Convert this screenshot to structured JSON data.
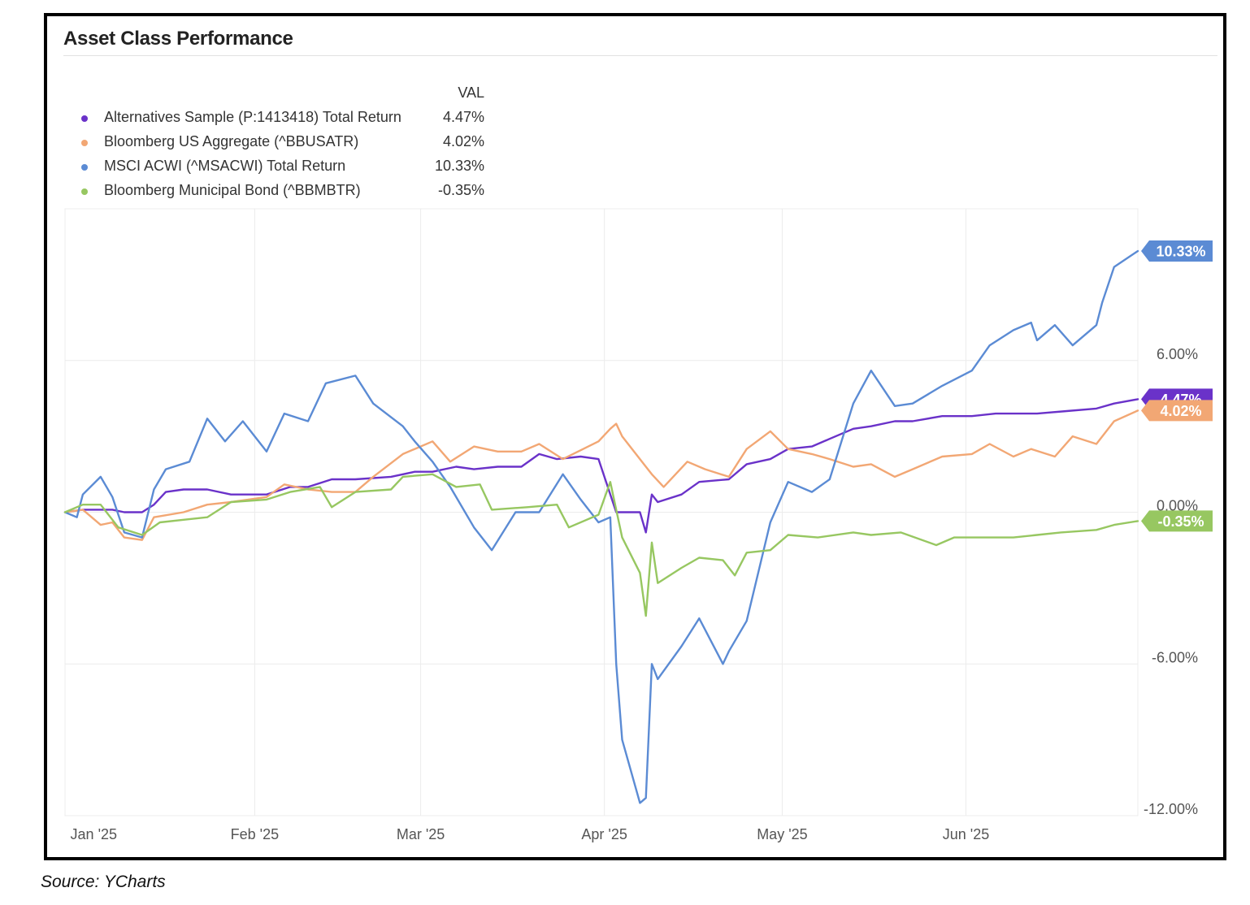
{
  "source_text": "Source: YCharts",
  "chart_data": {
    "type": "line",
    "title": "Asset Class Performance",
    "legend_header": "VAL",
    "xlabel": "",
    "ylabel": "",
    "ylim": [
      -12,
      12
    ],
    "yticks": [
      6,
      0,
      -6,
      -12
    ],
    "ytick_labels": [
      "6.00%",
      "0.00%",
      "-6.00%",
      "-12.00%"
    ],
    "x_tick_labels": [
      "Jan '25",
      "Feb '25",
      "Mar '25",
      "Apr '25",
      "May '25",
      "Jun '25"
    ],
    "x_tick_dates": [
      "2025-01-01",
      "2025-02-01",
      "2025-03-01",
      "2025-04-01",
      "2025-05-01",
      "2025-06-01"
    ],
    "x_range": [
      "2024-12-31",
      "2025-06-30"
    ],
    "grid": true,
    "legend_position": "top-left",
    "series": [
      {
        "name": "Alternatives Sample (P:1413418) Total Return",
        "value_label": "4.47%",
        "color": "#6a32c9",
        "data": [
          [
            "2024-12-31",
            0.0
          ],
          [
            "2025-01-03",
            0.1
          ],
          [
            "2025-01-08",
            0.1
          ],
          [
            "2025-01-10",
            0.0
          ],
          [
            "2025-01-13",
            0.0
          ],
          [
            "2025-01-15",
            0.3
          ],
          [
            "2025-01-17",
            0.8
          ],
          [
            "2025-01-20",
            0.9
          ],
          [
            "2025-01-24",
            0.9
          ],
          [
            "2025-01-28",
            0.7
          ],
          [
            "2025-02-03",
            0.7
          ],
          [
            "2025-02-07",
            1.0
          ],
          [
            "2025-02-10",
            1.0
          ],
          [
            "2025-02-14",
            1.3
          ],
          [
            "2025-02-18",
            1.3
          ],
          [
            "2025-02-24",
            1.4
          ],
          [
            "2025-02-28",
            1.6
          ],
          [
            "2025-03-03",
            1.6
          ],
          [
            "2025-03-07",
            1.8
          ],
          [
            "2025-03-10",
            1.7
          ],
          [
            "2025-03-14",
            1.8
          ],
          [
            "2025-03-18",
            1.8
          ],
          [
            "2025-03-21",
            2.3
          ],
          [
            "2025-03-24",
            2.1
          ],
          [
            "2025-03-28",
            2.2
          ],
          [
            "2025-03-31",
            2.1
          ],
          [
            "2025-04-03",
            0.0
          ],
          [
            "2025-04-07",
            0.0
          ],
          [
            "2025-04-08",
            -0.8
          ],
          [
            "2025-04-09",
            0.7
          ],
          [
            "2025-04-10",
            0.4
          ],
          [
            "2025-04-14",
            0.7
          ],
          [
            "2025-04-17",
            1.2
          ],
          [
            "2025-04-22",
            1.3
          ],
          [
            "2025-04-25",
            1.9
          ],
          [
            "2025-04-29",
            2.1
          ],
          [
            "2025-05-02",
            2.5
          ],
          [
            "2025-05-06",
            2.6
          ],
          [
            "2025-05-09",
            2.9
          ],
          [
            "2025-05-13",
            3.3
          ],
          [
            "2025-05-16",
            3.4
          ],
          [
            "2025-05-20",
            3.6
          ],
          [
            "2025-05-23",
            3.6
          ],
          [
            "2025-05-28",
            3.8
          ],
          [
            "2025-06-02",
            3.8
          ],
          [
            "2025-06-06",
            3.9
          ],
          [
            "2025-06-10",
            3.9
          ],
          [
            "2025-06-13",
            3.9
          ],
          [
            "2025-06-18",
            4.0
          ],
          [
            "2025-06-23",
            4.1
          ],
          [
            "2025-06-26",
            4.3
          ],
          [
            "2025-06-30",
            4.47
          ]
        ]
      },
      {
        "name": "Bloomberg US Aggregate (^BBUSATR)",
        "value_label": "4.02%",
        "color": "#f2a774",
        "data": [
          [
            "2024-12-31",
            0.0
          ],
          [
            "2025-01-03",
            0.1
          ],
          [
            "2025-01-06",
            -0.5
          ],
          [
            "2025-01-08",
            -0.4
          ],
          [
            "2025-01-10",
            -1.0
          ],
          [
            "2025-01-13",
            -1.1
          ],
          [
            "2025-01-15",
            -0.2
          ],
          [
            "2025-01-20",
            0.0
          ],
          [
            "2025-01-24",
            0.3
          ],
          [
            "2025-01-28",
            0.4
          ],
          [
            "2025-02-03",
            0.6
          ],
          [
            "2025-02-06",
            1.1
          ],
          [
            "2025-02-10",
            0.9
          ],
          [
            "2025-02-14",
            0.8
          ],
          [
            "2025-02-18",
            0.8
          ],
          [
            "2025-02-21",
            1.4
          ],
          [
            "2025-02-26",
            2.3
          ],
          [
            "2025-03-03",
            2.8
          ],
          [
            "2025-03-06",
            2.0
          ],
          [
            "2025-03-10",
            2.6
          ],
          [
            "2025-03-14",
            2.4
          ],
          [
            "2025-03-18",
            2.4
          ],
          [
            "2025-03-21",
            2.7
          ],
          [
            "2025-03-25",
            2.1
          ],
          [
            "2025-03-31",
            2.8
          ],
          [
            "2025-04-02",
            3.3
          ],
          [
            "2025-04-03",
            3.5
          ],
          [
            "2025-04-04",
            3.0
          ],
          [
            "2025-04-08",
            1.8
          ],
          [
            "2025-04-09",
            1.5
          ],
          [
            "2025-04-11",
            1.0
          ],
          [
            "2025-04-15",
            2.0
          ],
          [
            "2025-04-18",
            1.7
          ],
          [
            "2025-04-22",
            1.4
          ],
          [
            "2025-04-25",
            2.5
          ],
          [
            "2025-04-29",
            3.2
          ],
          [
            "2025-05-02",
            2.5
          ],
          [
            "2025-05-06",
            2.3
          ],
          [
            "2025-05-09",
            2.1
          ],
          [
            "2025-05-13",
            1.8
          ],
          [
            "2025-05-16",
            1.9
          ],
          [
            "2025-05-20",
            1.4
          ],
          [
            "2025-05-23",
            1.7
          ],
          [
            "2025-05-28",
            2.2
          ],
          [
            "2025-06-02",
            2.3
          ],
          [
            "2025-06-05",
            2.7
          ],
          [
            "2025-06-09",
            2.2
          ],
          [
            "2025-06-12",
            2.5
          ],
          [
            "2025-06-16",
            2.2
          ],
          [
            "2025-06-19",
            3.0
          ],
          [
            "2025-06-23",
            2.7
          ],
          [
            "2025-06-26",
            3.6
          ],
          [
            "2025-06-30",
            4.02
          ]
        ]
      },
      {
        "name": "MSCI ACWI (^MSACWI) Total Return",
        "value_label": "10.33%",
        "color": "#5b8bd4",
        "data": [
          [
            "2024-12-31",
            0.0
          ],
          [
            "2025-01-02",
            -0.2
          ],
          [
            "2025-01-03",
            0.7
          ],
          [
            "2025-01-06",
            1.4
          ],
          [
            "2025-01-08",
            0.6
          ],
          [
            "2025-01-10",
            -0.8
          ],
          [
            "2025-01-13",
            -1.0
          ],
          [
            "2025-01-15",
            0.9
          ],
          [
            "2025-01-17",
            1.7
          ],
          [
            "2025-01-21",
            2.0
          ],
          [
            "2025-01-24",
            3.7
          ],
          [
            "2025-01-27",
            2.8
          ],
          [
            "2025-01-30",
            3.6
          ],
          [
            "2025-02-03",
            2.4
          ],
          [
            "2025-02-06",
            3.9
          ],
          [
            "2025-02-10",
            3.6
          ],
          [
            "2025-02-13",
            5.1
          ],
          [
            "2025-02-18",
            5.4
          ],
          [
            "2025-02-21",
            4.3
          ],
          [
            "2025-02-26",
            3.4
          ],
          [
            "2025-02-28",
            2.8
          ],
          [
            "2025-03-03",
            2.0
          ],
          [
            "2025-03-06",
            1.0
          ],
          [
            "2025-03-10",
            -0.6
          ],
          [
            "2025-03-13",
            -1.5
          ],
          [
            "2025-03-17",
            0.0
          ],
          [
            "2025-03-21",
            0.0
          ],
          [
            "2025-03-25",
            1.5
          ],
          [
            "2025-03-28",
            0.5
          ],
          [
            "2025-03-31",
            -0.4
          ],
          [
            "2025-04-02",
            -0.2
          ],
          [
            "2025-04-03",
            -6.0
          ],
          [
            "2025-04-04",
            -9.0
          ],
          [
            "2025-04-07",
            -11.5
          ],
          [
            "2025-04-08",
            -11.3
          ],
          [
            "2025-04-09",
            -6.0
          ],
          [
            "2025-04-10",
            -6.6
          ],
          [
            "2025-04-14",
            -5.3
          ],
          [
            "2025-04-17",
            -4.2
          ],
          [
            "2025-04-21",
            -6.0
          ],
          [
            "2025-04-22",
            -5.5
          ],
          [
            "2025-04-25",
            -4.3
          ],
          [
            "2025-04-29",
            -0.4
          ],
          [
            "2025-05-02",
            1.2
          ],
          [
            "2025-05-06",
            0.8
          ],
          [
            "2025-05-09",
            1.3
          ],
          [
            "2025-05-13",
            4.3
          ],
          [
            "2025-05-16",
            5.6
          ],
          [
            "2025-05-20",
            4.2
          ],
          [
            "2025-05-23",
            4.3
          ],
          [
            "2025-05-28",
            5.0
          ],
          [
            "2025-06-02",
            5.6
          ],
          [
            "2025-06-05",
            6.6
          ],
          [
            "2025-06-09",
            7.2
          ],
          [
            "2025-06-12",
            7.5
          ],
          [
            "2025-06-13",
            6.8
          ],
          [
            "2025-06-16",
            7.4
          ],
          [
            "2025-06-19",
            6.6
          ],
          [
            "2025-06-23",
            7.4
          ],
          [
            "2025-06-24",
            8.3
          ],
          [
            "2025-06-26",
            9.7
          ],
          [
            "2025-06-30",
            10.33
          ]
        ]
      },
      {
        "name": "Bloomberg Municipal Bond (^BBMBTR)",
        "value_label": "-0.35%",
        "color": "#97c761",
        "data": [
          [
            "2024-12-31",
            0.0
          ],
          [
            "2025-01-03",
            0.3
          ],
          [
            "2025-01-06",
            0.3
          ],
          [
            "2025-01-09",
            -0.6
          ],
          [
            "2025-01-13",
            -0.9
          ],
          [
            "2025-01-16",
            -0.4
          ],
          [
            "2025-01-20",
            -0.3
          ],
          [
            "2025-01-24",
            -0.2
          ],
          [
            "2025-01-28",
            0.4
          ],
          [
            "2025-02-03",
            0.5
          ],
          [
            "2025-02-07",
            0.8
          ],
          [
            "2025-02-12",
            1.0
          ],
          [
            "2025-02-14",
            0.2
          ],
          [
            "2025-02-18",
            0.8
          ],
          [
            "2025-02-24",
            0.9
          ],
          [
            "2025-02-26",
            1.4
          ],
          [
            "2025-03-03",
            1.5
          ],
          [
            "2025-03-07",
            1.0
          ],
          [
            "2025-03-11",
            1.1
          ],
          [
            "2025-03-13",
            0.1
          ],
          [
            "2025-03-19",
            0.2
          ],
          [
            "2025-03-24",
            0.3
          ],
          [
            "2025-03-26",
            -0.6
          ],
          [
            "2025-03-31",
            -0.1
          ],
          [
            "2025-04-02",
            1.2
          ],
          [
            "2025-04-04",
            -1.0
          ],
          [
            "2025-04-07",
            -2.4
          ],
          [
            "2025-04-08",
            -4.1
          ],
          [
            "2025-04-09",
            -1.2
          ],
          [
            "2025-04-10",
            -2.8
          ],
          [
            "2025-04-14",
            -2.2
          ],
          [
            "2025-04-17",
            -1.8
          ],
          [
            "2025-04-21",
            -1.9
          ],
          [
            "2025-04-23",
            -2.5
          ],
          [
            "2025-04-25",
            -1.6
          ],
          [
            "2025-04-29",
            -1.5
          ],
          [
            "2025-05-02",
            -0.9
          ],
          [
            "2025-05-07",
            -1.0
          ],
          [
            "2025-05-13",
            -0.8
          ],
          [
            "2025-05-16",
            -0.9
          ],
          [
            "2025-05-21",
            -0.8
          ],
          [
            "2025-05-27",
            -1.3
          ],
          [
            "2025-05-30",
            -1.0
          ],
          [
            "2025-06-04",
            -1.0
          ],
          [
            "2025-06-09",
            -1.0
          ],
          [
            "2025-06-13",
            -0.9
          ],
          [
            "2025-06-17",
            -0.8
          ],
          [
            "2025-06-23",
            -0.7
          ],
          [
            "2025-06-26",
            -0.5
          ],
          [
            "2025-06-30",
            -0.35
          ]
        ]
      }
    ]
  }
}
